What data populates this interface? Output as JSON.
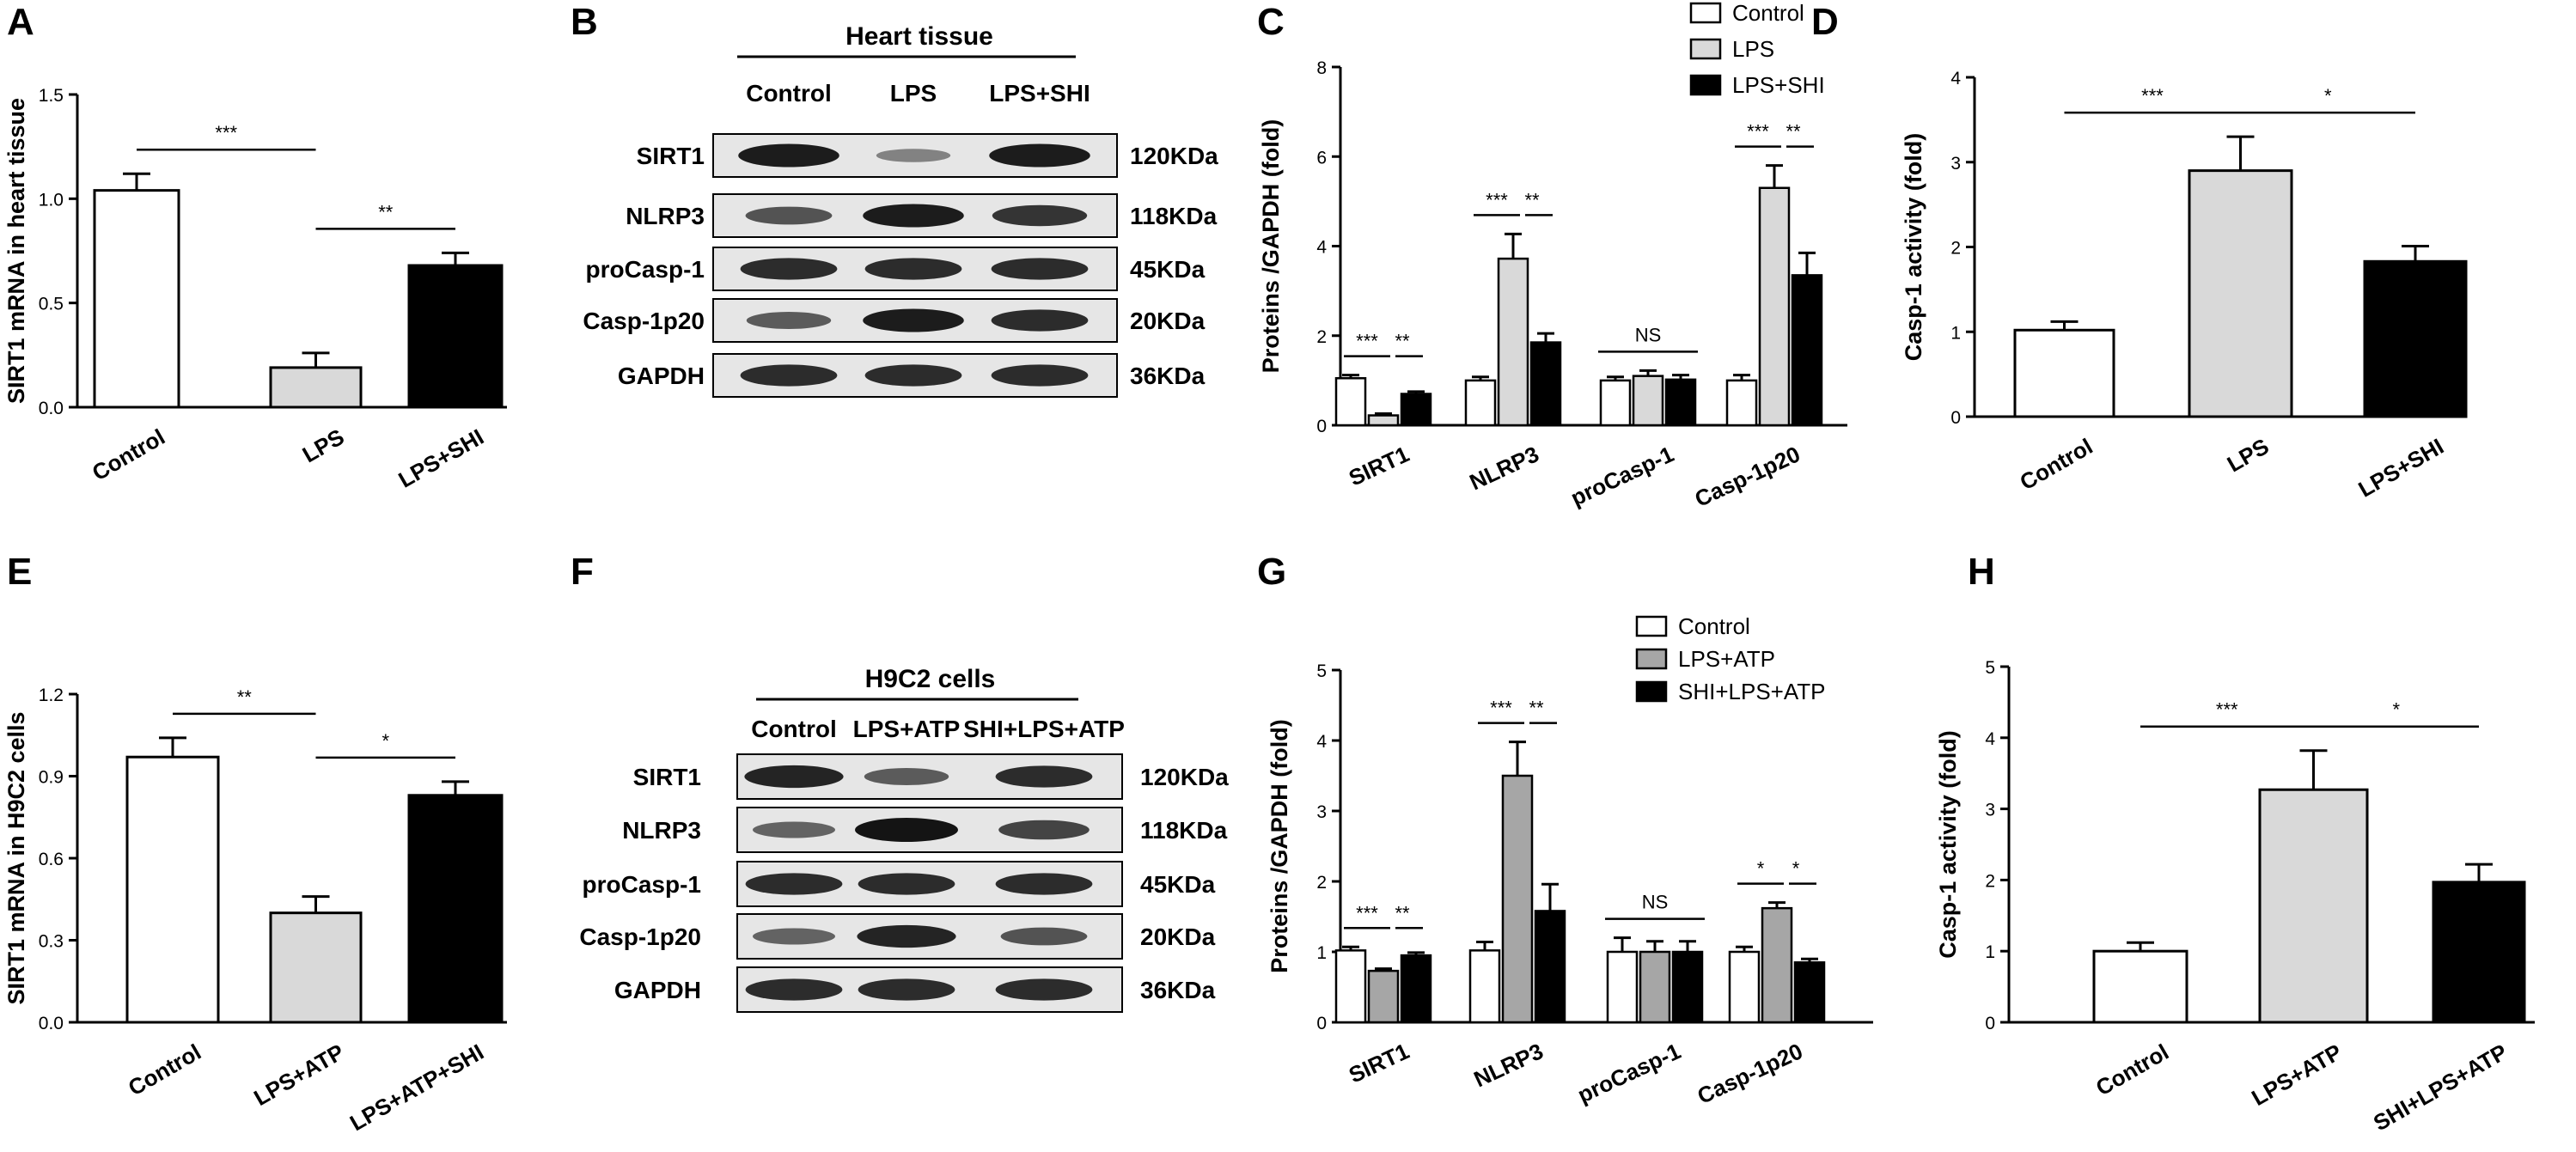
{
  "colors": {
    "control": "#ffffff",
    "lps": "#d9d9d9",
    "lps_atp": "#a6a6a6",
    "treated": "#000000",
    "axis": "#000000",
    "blot_bg": "#e6e6e6",
    "band": "#141414"
  },
  "panel_letters": [
    "A",
    "B",
    "C",
    "D",
    "E",
    "F",
    "G",
    "H"
  ],
  "chart_data": [
    {
      "panel": "A",
      "type": "bar",
      "categories": [
        "Control",
        "LPS",
        "LPS+SHI"
      ],
      "values": [
        1.04,
        0.19,
        0.68
      ],
      "errors": [
        0.08,
        0.07,
        0.06
      ],
      "colors": [
        "#ffffff",
        "#d9d9d9",
        "#000000"
      ],
      "ylabel": "SIRT1 mRNA in heart tissue",
      "ylim": [
        0,
        1.5
      ],
      "yticks": [
        "0.0",
        "0.5",
        "1.0",
        "1.5"
      ],
      "significance": [
        {
          "from": 0,
          "to": 1,
          "label": "***"
        },
        {
          "from": 1,
          "to": 2,
          "label": "**"
        }
      ]
    },
    {
      "panel": "C",
      "type": "bar",
      "categories": [
        "SIRT1",
        "NLRP3",
        "proCasp-1",
        "Casp-1p20"
      ],
      "series": [
        {
          "name": "Control",
          "color": "#ffffff",
          "values": [
            1.05,
            1.0,
            1.0,
            1.0
          ],
          "errors": [
            0.07,
            0.08,
            0.08,
            0.12
          ]
        },
        {
          "name": "LPS",
          "color": "#d9d9d9",
          "values": [
            0.22,
            3.72,
            1.1,
            5.3
          ],
          "errors": [
            0.04,
            0.55,
            0.12,
            0.5
          ]
        },
        {
          "name": "LPS+SHI",
          "color": "#000000",
          "values": [
            0.7,
            1.85,
            1.02,
            3.35
          ],
          "errors": [
            0.05,
            0.2,
            0.1,
            0.5
          ]
        }
      ],
      "ylabel": "Proteins /GAPDH (fold)",
      "ylim": [
        0,
        8
      ],
      "yticks": [
        "0",
        "2",
        "4",
        "6",
        "8"
      ],
      "legend": "top-right",
      "annotations": [
        "***",
        "**",
        "***",
        "**",
        "NS",
        "***",
        "**"
      ]
    },
    {
      "panel": "D",
      "type": "bar",
      "categories": [
        "Control",
        "LPS",
        "LPS+SHI"
      ],
      "values": [
        1.02,
        2.9,
        1.83
      ],
      "errors": [
        0.1,
        0.4,
        0.18
      ],
      "colors": [
        "#ffffff",
        "#d9d9d9",
        "#000000"
      ],
      "ylabel": "Casp-1 activity (fold)",
      "ylim": [
        0,
        4
      ],
      "yticks": [
        "0",
        "1",
        "2",
        "3",
        "4"
      ],
      "significance": [
        {
          "from": 0,
          "to": 1,
          "label": "***"
        },
        {
          "from": 1,
          "to": 2,
          "label": "*"
        }
      ]
    },
    {
      "panel": "E",
      "type": "bar",
      "categories": [
        "Control",
        "LPS+ATP",
        "LPS+ATP+SHI"
      ],
      "values": [
        0.97,
        0.4,
        0.83
      ],
      "errors": [
        0.07,
        0.06,
        0.05
      ],
      "colors": [
        "#ffffff",
        "#d9d9d9",
        "#000000"
      ],
      "ylabel": "SIRT1 mRNA in H9C2 cells",
      "ylim": [
        0,
        1.2
      ],
      "yticks": [
        "0.0",
        "0.3",
        "0.6",
        "0.9",
        "1.2"
      ],
      "significance": [
        {
          "from": 0,
          "to": 1,
          "label": "**"
        },
        {
          "from": 1,
          "to": 2,
          "label": "*"
        }
      ]
    },
    {
      "panel": "G",
      "type": "bar",
      "categories": [
        "SIRT1",
        "NLRP3",
        "proCasp-1",
        "Casp-1p20"
      ],
      "series": [
        {
          "name": "Control",
          "color": "#ffffff",
          "values": [
            1.02,
            1.02,
            1.0,
            1.0
          ],
          "errors": [
            0.05,
            0.12,
            0.2,
            0.07
          ]
        },
        {
          "name": "LPS+ATP",
          "color": "#a6a6a6",
          "values": [
            0.73,
            3.5,
            1.0,
            1.62
          ],
          "errors": [
            0.03,
            0.48,
            0.15,
            0.08
          ]
        },
        {
          "name": "SHI+LPS+ATP",
          "color": "#000000",
          "values": [
            0.95,
            1.58,
            1.0,
            0.85
          ],
          "errors": [
            0.04,
            0.38,
            0.15,
            0.05
          ]
        }
      ],
      "ylabel": "Proteins /GAPDH (fold)",
      "ylim": [
        0,
        5
      ],
      "yticks": [
        "0",
        "1",
        "2",
        "3",
        "4",
        "5"
      ],
      "legend": "top-right",
      "annotations": [
        "***",
        "**",
        "***",
        "**",
        "NS",
        "*",
        "*"
      ]
    },
    {
      "panel": "H",
      "type": "bar",
      "categories": [
        "Control",
        "LPS+ATP",
        "SHI+LPS+ATP"
      ],
      "values": [
        1.0,
        3.27,
        1.97
      ],
      "errors": [
        0.12,
        0.55,
        0.25
      ],
      "colors": [
        "#ffffff",
        "#d9d9d9",
        "#000000"
      ],
      "ylabel": "Casp-1 activity (fold)",
      "ylim": [
        0,
        5
      ],
      "yticks": [
        "0",
        "1",
        "2",
        "3",
        "4",
        "5"
      ],
      "significance": [
        {
          "from": 0,
          "to": 1,
          "label": "***"
        },
        {
          "from": 1,
          "to": 2,
          "label": "*"
        }
      ]
    }
  ],
  "blots": [
    {
      "panel": "B",
      "title": "Heart tissue",
      "lanes": [
        "Control",
        "LPS",
        "LPS+SHI"
      ],
      "rows": [
        {
          "protein": "SIRT1",
          "size": "120KDa",
          "intensity": [
            0.95,
            0.3,
            0.95
          ]
        },
        {
          "protein": "NLRP3",
          "size": "118KDa",
          "intensity": [
            0.6,
            0.95,
            0.8
          ]
        },
        {
          "protein": "proCasp-1",
          "size": "45KDa",
          "intensity": [
            0.85,
            0.85,
            0.85
          ]
        },
        {
          "protein": "Casp-1p20",
          "size": "20KDa",
          "intensity": [
            0.55,
            0.95,
            0.85
          ]
        },
        {
          "protein": "GAPDH",
          "size": "36KDa",
          "intensity": [
            0.85,
            0.85,
            0.85
          ]
        }
      ]
    },
    {
      "panel": "F",
      "title": "H9C2  cells",
      "lanes": [
        "Control",
        "LPS+ATP",
        "SHI+LPS+ATP"
      ],
      "rows": [
        {
          "protein": "SIRT1",
          "size": "120KDa",
          "intensity": [
            0.9,
            0.55,
            0.85
          ]
        },
        {
          "protein": "NLRP3",
          "size": "118KDa",
          "intensity": [
            0.5,
            1.0,
            0.7
          ]
        },
        {
          "protein": "proCasp-1",
          "size": "45KDa",
          "intensity": [
            0.85,
            0.85,
            0.85
          ]
        },
        {
          "protein": "Casp-1p20",
          "size": "20KDa",
          "intensity": [
            0.5,
            0.9,
            0.6
          ]
        },
        {
          "protein": "GAPDH",
          "size": "36KDa",
          "intensity": [
            0.85,
            0.85,
            0.85
          ]
        }
      ]
    }
  ]
}
